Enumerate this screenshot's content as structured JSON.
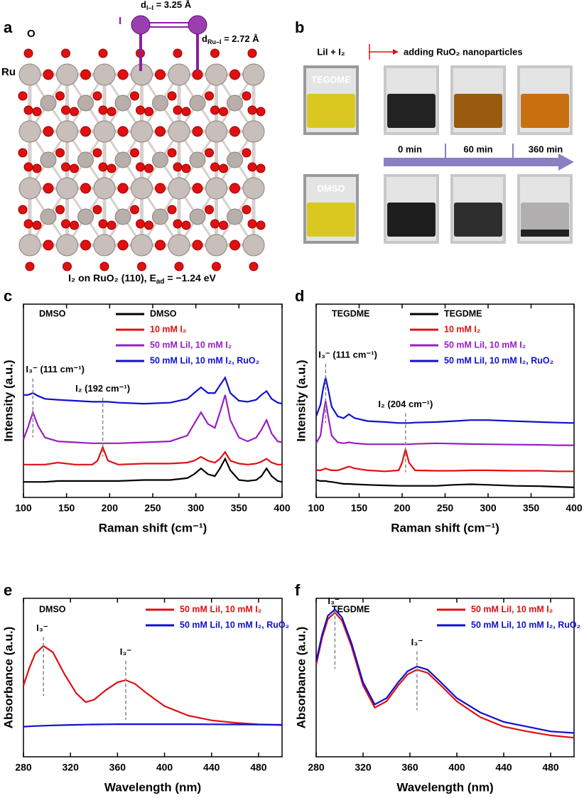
{
  "panels": [
    "a",
    "b",
    "c",
    "d",
    "e",
    "f"
  ],
  "structure": {
    "o_label": "O",
    "ru_label": "Ru",
    "i_label": "I",
    "d_ii": [
      "d",
      "I–I",
      " = 3.25 Å"
    ],
    "d_rui": [
      "d",
      "Ru–I",
      " = 2.72 Å"
    ],
    "caption": [
      "I₂ on RuO₂ (110), E",
      "ad",
      " = −1.24 eV"
    ]
  },
  "photos": {
    "left_label": "LiI + I₂",
    "action": "adding RuO₂ nanoparticles",
    "solvents": [
      "TEGDME",
      "DMSO"
    ],
    "times": [
      "0 min",
      "60 min",
      "360 min"
    ]
  },
  "chart_data": [
    {
      "type": "line",
      "solvent": "DMSO",
      "xlabel": "Raman shift (cm⁻¹)",
      "ylabel": "Intensity (a.u.)",
      "xlim": [
        100,
        400
      ],
      "xticks": [
        100,
        150,
        200,
        250,
        300,
        350,
        400
      ],
      "ylim": [
        0,
        100
      ],
      "x": [
        100,
        105,
        111,
        117,
        125,
        140,
        160,
        180,
        186,
        192,
        198,
        210,
        240,
        270,
        290,
        298,
        306,
        314,
        322,
        328,
        334,
        340,
        350,
        360,
        370,
        376,
        382,
        388,
        395,
        400
      ],
      "series": [
        {
          "name": "DMSO",
          "color": "#000000",
          "values": [
            8,
            8,
            8,
            8,
            8,
            8.5,
            8.5,
            8.5,
            8.5,
            8.5,
            8.5,
            8.5,
            9,
            9,
            10,
            12,
            15,
            12,
            11,
            15,
            20,
            14,
            9,
            8.5,
            9,
            11,
            15,
            11,
            8.5,
            8
          ]
        },
        {
          "name": "10 mM I₂",
          "color": "#e01010",
          "values": [
            17,
            17,
            17,
            17,
            17,
            18,
            17,
            17,
            19,
            26,
            19,
            17,
            17.5,
            17.5,
            18,
            19,
            21,
            19,
            18,
            20,
            23.5,
            19,
            17.5,
            17,
            17.5,
            18.5,
            20,
            18,
            17,
            17
          ]
        },
        {
          "name": "50 mM LiI, 10 mM I₂",
          "color": "#9a1fc0",
          "values": [
            30,
            36,
            44,
            37,
            31,
            29,
            28.5,
            28,
            28,
            28,
            28,
            28,
            28.5,
            29,
            32,
            38,
            44,
            38,
            36,
            44,
            53,
            40,
            31,
            29,
            31,
            35,
            40,
            33,
            29,
            28.5
          ]
        },
        {
          "name": "50 mM LiI, 10 mM I₂, RuO₂",
          "color": "#1010d0",
          "values": [
            53,
            53,
            54,
            52.5,
            51,
            50.5,
            50,
            49.5,
            49.5,
            49.5,
            49.5,
            49,
            48.5,
            49,
            51,
            54,
            57,
            54,
            54,
            58,
            62,
            54,
            50,
            49.5,
            50.5,
            53,
            55,
            51,
            49,
            48.5
          ]
        }
      ],
      "annotations": [
        {
          "text": "I₃⁻ (111 cm⁻¹)",
          "x": 111,
          "y": 66
        },
        {
          "text": "I₂ (192 cm⁻¹)",
          "x": 192,
          "y": 56
        }
      ]
    },
    {
      "type": "line",
      "solvent": "TEGDME",
      "xlabel": "Raman shift (cm⁻¹)",
      "ylabel": "Intensity (a.u.)",
      "xlim": [
        100,
        400
      ],
      "xticks": [
        100,
        150,
        200,
        250,
        300,
        350,
        400
      ],
      "ylim": [
        0,
        100
      ],
      "x": [
        100,
        105,
        108,
        111,
        114,
        118,
        125,
        132,
        138,
        145,
        160,
        180,
        196,
        200,
        204,
        208,
        215,
        240,
        260,
        280,
        300,
        330,
        360,
        380,
        400
      ],
      "series": [
        {
          "name": "TEGDME",
          "color": "#000000",
          "values": [
            9,
            8.5,
            8.5,
            8.5,
            8.2,
            8,
            7.5,
            7,
            7,
            6.8,
            6.5,
            6.2,
            6,
            6,
            6,
            6,
            6,
            6,
            6.5,
            6.8,
            6.5,
            6,
            5.8,
            5.5,
            5.2
          ]
        },
        {
          "name": "10 mM I₂",
          "color": "#e01010",
          "values": [
            14,
            14,
            14.5,
            15,
            14.5,
            14,
            14,
            15,
            16,
            15,
            14,
            13.5,
            14,
            18,
            25,
            18,
            14,
            13.8,
            13.8,
            14,
            14,
            13.8,
            13.8,
            13.5,
            13.5
          ]
        },
        {
          "name": "50 mM LiI, 10 mM I₂",
          "color": "#9a1fc0",
          "values": [
            28,
            32,
            42,
            50,
            42,
            32,
            28.5,
            28,
            28.5,
            28,
            27.5,
            27.5,
            27.5,
            27.5,
            27.5,
            27.5,
            27.7,
            28,
            27.8,
            27.6,
            27.5,
            27.3,
            27.2,
            27,
            27
          ]
        },
        {
          "name": "50 mM LiI, 10 mM I₂, RuO₂",
          "color": "#1010d0",
          "values": [
            42,
            48,
            56,
            62,
            56,
            47,
            42,
            41,
            43,
            41,
            39.5,
            39,
            38.5,
            38.5,
            38.5,
            38.5,
            38.7,
            39,
            39.5,
            40,
            40,
            39.5,
            39,
            38.7,
            38.5
          ]
        }
      ],
      "annotations": [
        {
          "text": "I₃⁻ (111 cm⁻¹)",
          "x": 111,
          "y": 73.5
        },
        {
          "text": "I₂ (204 cm⁻¹)",
          "x": 204,
          "y": 48
        }
      ]
    },
    {
      "type": "line",
      "solvent": "DMSO",
      "xlabel": "Wavelength (nm)",
      "ylabel": "Absorbance (a.u.)",
      "xlim": [
        280,
        500
      ],
      "xticks": [
        280,
        320,
        360,
        400,
        440,
        480
      ],
      "ylim": [
        0,
        100
      ],
      "x": [
        280,
        285,
        290,
        297,
        305,
        315,
        325,
        333,
        340,
        350,
        360,
        367,
        375,
        385,
        400,
        420,
        440,
        460,
        480,
        500
      ],
      "series": [
        {
          "name": "50 mM LiI, 10 mM I₂",
          "color": "#e01010",
          "values": [
            45,
            56,
            65,
            70,
            66,
            52,
            40,
            34.5,
            36,
            42,
            47,
            48.4,
            46,
            40,
            32,
            26,
            23,
            21.5,
            20.5,
            20
          ]
        },
        {
          "name": "50 mM LiI, 10 mM I₂, RuO₂",
          "color": "#1010d0",
          "values": [
            19,
            19.2,
            19.4,
            19.6,
            19.8,
            20,
            20.2,
            20.3,
            20.4,
            20.5,
            20.6,
            20.6,
            20.6,
            20.6,
            20.6,
            20.6,
            20.5,
            20.4,
            20.3,
            20.2
          ]
        }
      ],
      "annotations": [
        {
          "text": "I₃⁻",
          "x": 297,
          "y": 81
        },
        {
          "text": "I₃⁻",
          "x": 367,
          "y": 66
        }
      ]
    },
    {
      "type": "line",
      "solvent": "TEGDME",
      "xlabel": "Wavelength (nm)",
      "ylabel": "Absorbance (a.u.)",
      "xlim": [
        280,
        500
      ],
      "xticks": [
        280,
        320,
        360,
        400,
        440,
        480
      ],
      "ylim": [
        0,
        100
      ],
      "x": [
        280,
        285,
        290,
        296,
        302,
        310,
        320,
        330,
        340,
        350,
        358,
        366,
        375,
        385,
        400,
        420,
        440,
        460,
        480,
        500
      ],
      "series": [
        {
          "name": "50 mM LiI, 10 mM I₂",
          "color": "#e01010",
          "values": [
            58,
            75,
            87,
            91,
            86,
            70,
            45,
            31,
            35,
            45,
            52,
            55,
            53,
            46,
            35,
            25,
            19,
            16,
            13.5,
            12
          ]
        },
        {
          "name": "50 mM LiI, 10 mM I₂, RuO₂",
          "color": "#1010d0",
          "values": [
            60,
            77,
            89,
            93,
            88,
            72,
            47,
            33,
            37,
            47,
            54,
            57,
            55,
            48,
            37,
            28,
            22,
            19,
            16,
            15
          ]
        }
      ],
      "annotations": [
        {
          "text": "I₃⁻",
          "x": 296,
          "y": 98
        },
        {
          "text": "I₃⁻",
          "x": 366,
          "y": 72
        }
      ]
    }
  ]
}
